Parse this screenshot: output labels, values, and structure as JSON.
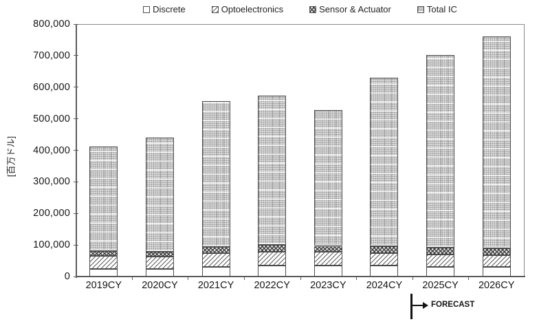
{
  "chart_data": {
    "type": "bar",
    "subtype": "stacked-vertical",
    "title": "",
    "categories": [
      "2019CY",
      "2020CY",
      "2021CY",
      "2022CY",
      "2023CY",
      "2024CY",
      "2025CY",
      "2026CY"
    ],
    "series": [
      {
        "name": "Discrete",
        "pattern": "plain-white",
        "values": [
          24000,
          24000,
          30000,
          34000,
          35000,
          34000,
          30000,
          30000
        ]
      },
      {
        "name": "Optoelectronics",
        "pattern": "diagonal-hatch",
        "values": [
          42000,
          40000,
          44000,
          45000,
          43000,
          41000,
          39000,
          37000
        ]
      },
      {
        "name": "Sensor & Actuator",
        "pattern": "crosshatch",
        "values": [
          14000,
          15000,
          19000,
          22000,
          19000,
          20000,
          22000,
          22000
        ]
      },
      {
        "name": "Total IC",
        "pattern": "dotted-grid",
        "values": [
          332000,
          361000,
          463000,
          473000,
          430000,
          535000,
          610000,
          672000
        ]
      }
    ],
    "totals": [
      412000,
      440000,
      556000,
      574000,
      527000,
      630000,
      701000,
      761000
    ],
    "xlabel": "",
    "ylabel": "[百万ドル]",
    "ylim": [
      0,
      800000
    ],
    "ytick_step": 100000,
    "ytick_labels": [
      "0",
      "100,000",
      "200,000",
      "300,000",
      "400,000",
      "500,000",
      "600,000",
      "700,000",
      "800,000"
    ],
    "grid": false,
    "legend_position": "top",
    "annotation": {
      "label": "FORECAST",
      "after_category": "2024CY",
      "note": "forecast period starts at 2025CY"
    }
  },
  "colors": {
    "axis": "#5a5a5a",
    "frame": "#8a8a8a",
    "bar_border": "#4a4a4a",
    "total_ic_fill": "#d9d9d9",
    "text": "#141414",
    "forecast_marker": "#121212",
    "background": "#ffffff"
  }
}
